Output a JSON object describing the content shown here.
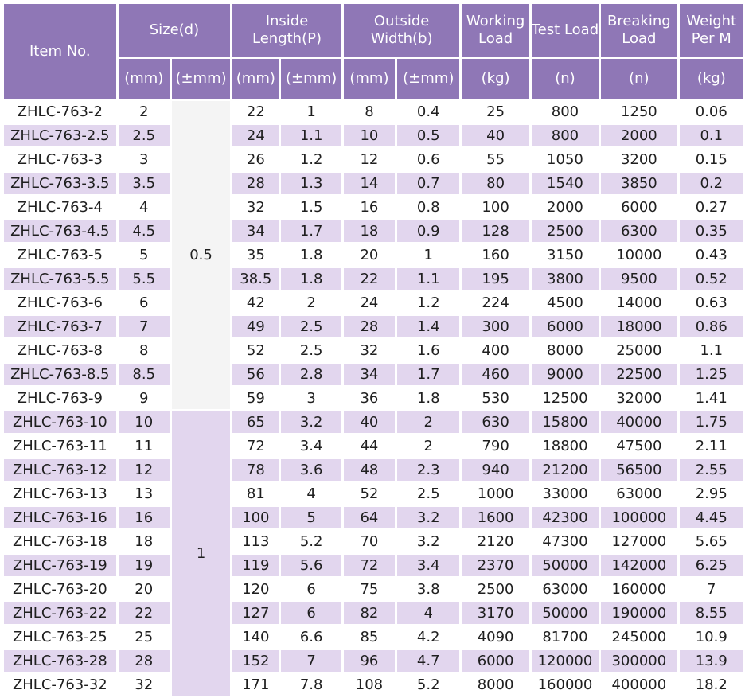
{
  "header": {
    "item_no": "Item No.",
    "size": "Size(d)",
    "inside_length": "Inside Length(P)",
    "outside_width": "Outside Width(b)",
    "working_load": "Working Load",
    "test_load": "Test Load",
    "breaking_load": "Breaking Load",
    "weight_per_m": "Weight Per M"
  },
  "units": [
    "(mm)",
    "(±mm)",
    "(mm)",
    "(±mm)",
    "(mm)",
    "(±mm)",
    "(kg)",
    "(n)",
    "(n)",
    "(kg)"
  ],
  "size_tolerance_groups": [
    "0.5",
    "1"
  ],
  "rows": [
    [
      "ZHLC-763-2",
      "2",
      "22",
      "1",
      "8",
      "0.4",
      "25",
      "800",
      "1250",
      "0.06"
    ],
    [
      "ZHLC-763-2.5",
      "2.5",
      "24",
      "1.1",
      "10",
      "0.5",
      "40",
      "800",
      "2000",
      "0.1"
    ],
    [
      "ZHLC-763-3",
      "3",
      "26",
      "1.2",
      "12",
      "0.6",
      "55",
      "1050",
      "3200",
      "0.15"
    ],
    [
      "ZHLC-763-3.5",
      "3.5",
      "28",
      "1.3",
      "14",
      "0.7",
      "80",
      "1540",
      "3850",
      "0.2"
    ],
    [
      "ZHLC-763-4",
      "4",
      "32",
      "1.5",
      "16",
      "0.8",
      "100",
      "2000",
      "6000",
      "0.27"
    ],
    [
      "ZHLC-763-4.5",
      "4.5",
      "34",
      "1.7",
      "18",
      "0.9",
      "128",
      "2500",
      "6300",
      "0.35"
    ],
    [
      "ZHLC-763-5",
      "5",
      "35",
      "1.8",
      "20",
      "1",
      "160",
      "3150",
      "10000",
      "0.43"
    ],
    [
      "ZHLC-763-5.5",
      "5.5",
      "38.5",
      "1.8",
      "22",
      "1.1",
      "195",
      "3800",
      "9500",
      "0.52"
    ],
    [
      "ZHLC-763-6",
      "6",
      "42",
      "2",
      "24",
      "1.2",
      "224",
      "4500",
      "14000",
      "0.63"
    ],
    [
      "ZHLC-763-7",
      "7",
      "49",
      "2.5",
      "28",
      "1.4",
      "300",
      "6000",
      "18000",
      "0.86"
    ],
    [
      "ZHLC-763-8",
      "8",
      "52",
      "2.5",
      "32",
      "1.6",
      "400",
      "8000",
      "25000",
      "1.1"
    ],
    [
      "ZHLC-763-8.5",
      "8.5",
      "56",
      "2.8",
      "34",
      "1.7",
      "460",
      "9000",
      "22500",
      "1.25"
    ],
    [
      "ZHLC-763-9",
      "9",
      "59",
      "3",
      "36",
      "1.8",
      "530",
      "12500",
      "32000",
      "1.41"
    ],
    [
      "ZHLC-763-10",
      "10",
      "65",
      "3.2",
      "40",
      "2",
      "630",
      "15800",
      "40000",
      "1.75"
    ],
    [
      "ZHLC-763-11",
      "11",
      "72",
      "3.4",
      "44",
      "2",
      "790",
      "18800",
      "47500",
      "2.11"
    ],
    [
      "ZHLC-763-12",
      "12",
      "78",
      "3.6",
      "48",
      "2.3",
      "940",
      "21200",
      "56500",
      "2.55"
    ],
    [
      "ZHLC-763-13",
      "13",
      "81",
      "4",
      "52",
      "2.5",
      "1000",
      "33000",
      "63000",
      "2.95"
    ],
    [
      "ZHLC-763-16",
      "16",
      "100",
      "5",
      "64",
      "3.2",
      "1600",
      "42300",
      "100000",
      "4.45"
    ],
    [
      "ZHLC-763-18",
      "18",
      "113",
      "5.2",
      "70",
      "3.2",
      "2120",
      "47300",
      "127000",
      "5.65"
    ],
    [
      "ZHLC-763-19",
      "19",
      "119",
      "5.6",
      "72",
      "3.4",
      "2370",
      "50000",
      "142000",
      "6.25"
    ],
    [
      "ZHLC-763-20",
      "20",
      "120",
      "6",
      "75",
      "3.8",
      "2500",
      "63000",
      "160000",
      "7"
    ],
    [
      "ZHLC-763-22",
      "22",
      "127",
      "6",
      "82",
      "4",
      "3170",
      "50000",
      "190000",
      "8.55"
    ],
    [
      "ZHLC-763-25",
      "25",
      "140",
      "6.6",
      "85",
      "4.2",
      "4090",
      "81700",
      "245000",
      "10.9"
    ],
    [
      "ZHLC-763-28",
      "28",
      "152",
      "7",
      "96",
      "4.7",
      "6000",
      "120000",
      "300000",
      "13.9"
    ],
    [
      "ZHLC-763-32",
      "32",
      "171",
      "7.8",
      "108",
      "5.2",
      "8000",
      "160000",
      "400000",
      "18.2"
    ]
  ],
  "colors": {
    "header_bg": "#8f77b6",
    "header_text": "#ffffff",
    "stripe": "#e2d6ee",
    "row": "#ffffff"
  }
}
